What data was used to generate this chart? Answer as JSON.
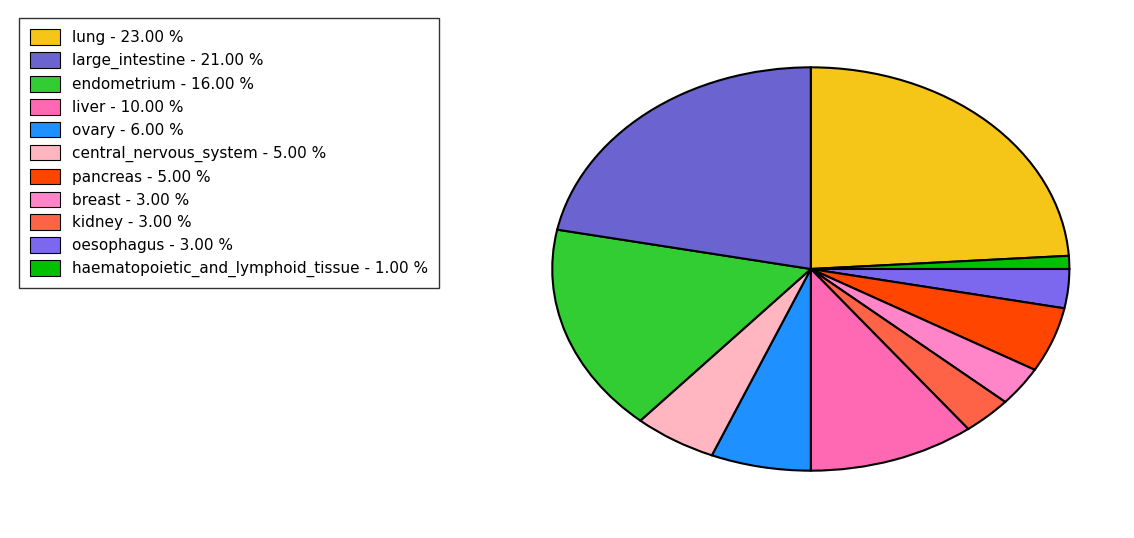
{
  "labels": [
    "lung",
    "haematopoietic_and_lymphoid_tissue",
    "oesophagus",
    "pancreas",
    "breast",
    "kidney",
    "liver",
    "ovary",
    "central_nervous_system",
    "endometrium",
    "large_intestine"
  ],
  "values": [
    23,
    1,
    3,
    5,
    3,
    3,
    10,
    6,
    5,
    16,
    21
  ],
  "colors": [
    "#F5C518",
    "#00C000",
    "#7B68EE",
    "#FF4500",
    "#FF85C8",
    "#FF6347",
    "#FF69B4",
    "#1E90FF",
    "#FFB6C1",
    "#32CD32",
    "#6B63D0"
  ],
  "legend_order_labels": [
    "lung - 23.00 %",
    "large_intestine - 21.00 %",
    "endometrium - 16.00 %",
    "liver - 10.00 %",
    "ovary - 6.00 %",
    "central_nervous_system - 5.00 %",
    "pancreas - 5.00 %",
    "breast - 3.00 %",
    "kidney - 3.00 %",
    "oesophagus - 3.00 %",
    "haematopoietic_and_lymphoid_tissue - 1.00 %"
  ],
  "legend_order_colors": [
    "#F5C518",
    "#6B63D0",
    "#32CD32",
    "#FF69B4",
    "#1E90FF",
    "#FFB6C1",
    "#FF4500",
    "#FF85C8",
    "#FF6347",
    "#7B68EE",
    "#00C000"
  ],
  "startangle": 90,
  "counterclock": false,
  "ellipse_ratio": 0.78,
  "figsize": [
    11.34,
    5.38
  ],
  "dpi": 100,
  "legend_fontsize": 11,
  "edgecolor": "black",
  "linewidth": 1.5
}
